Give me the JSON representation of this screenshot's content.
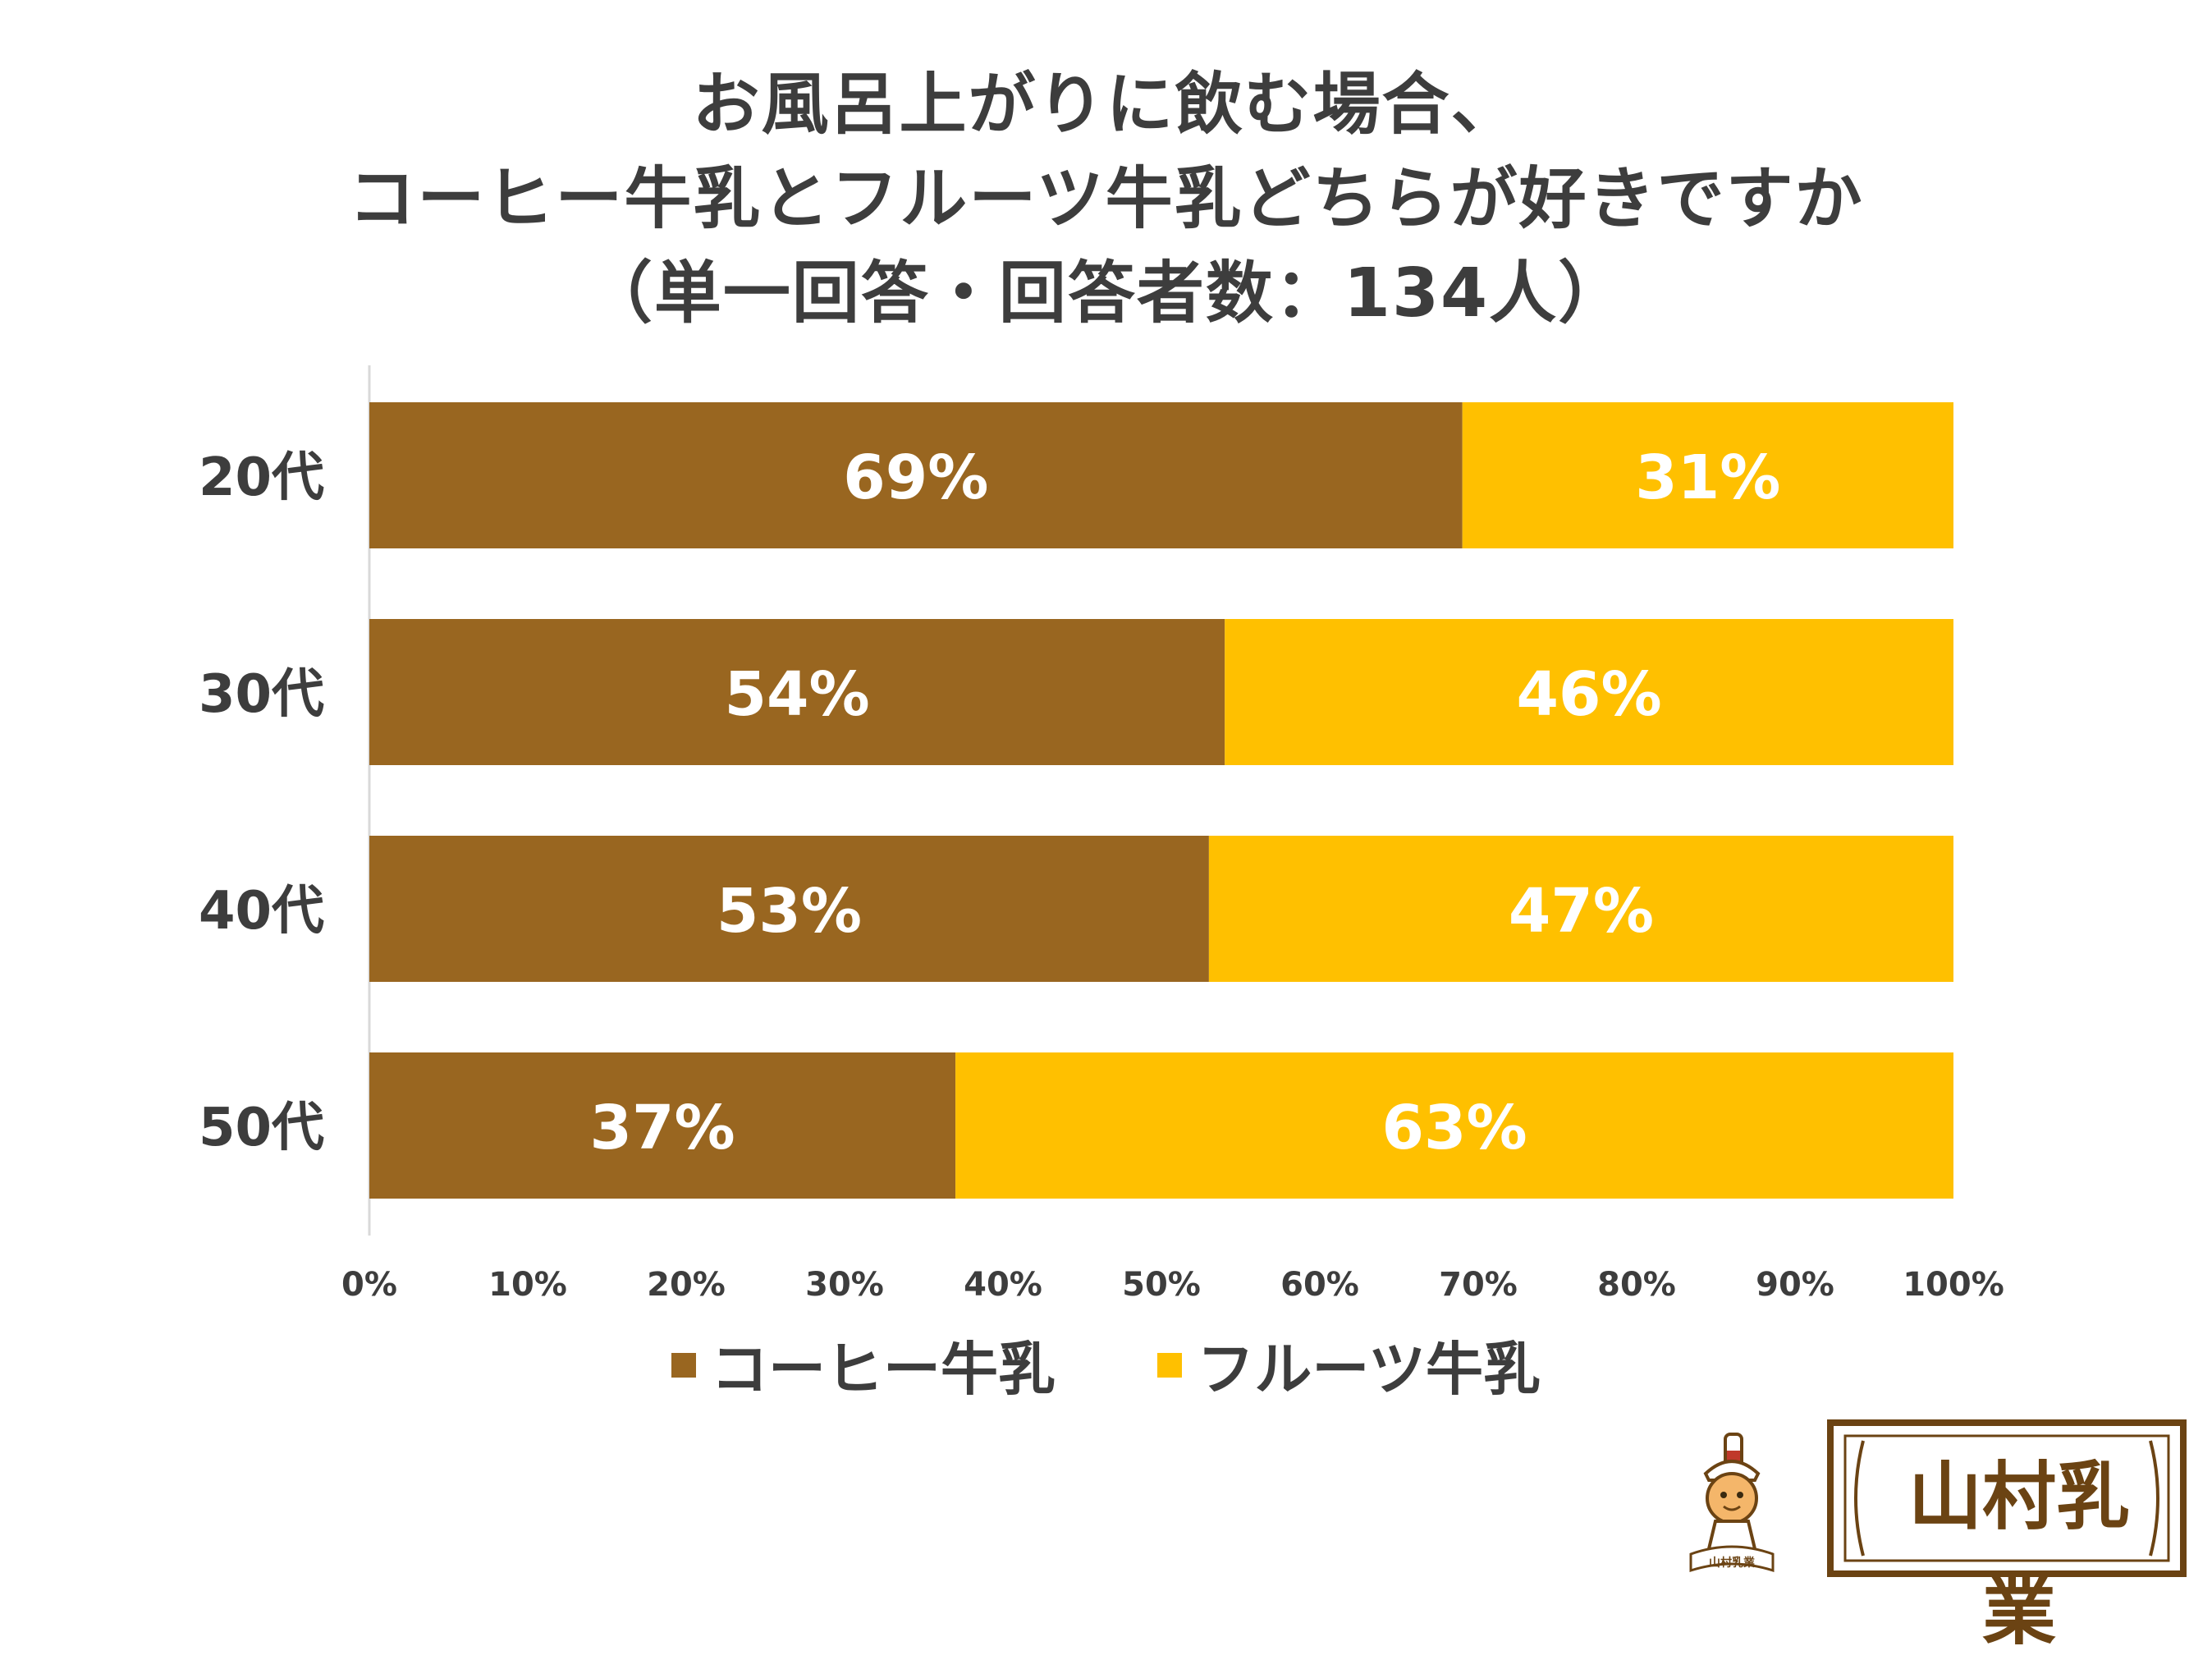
{
  "title_lines": [
    "お風呂上がりに飲む場合、",
    "コーヒー牛乳とフルーツ牛乳どちらが好きですか",
    "（単一回答・回答者数：134人）"
  ],
  "chart_data": {
    "type": "bar",
    "orientation": "horizontal",
    "stacked": true,
    "categories": [
      "20代",
      "30代",
      "40代",
      "50代"
    ],
    "series": [
      {
        "name": "コーヒー牛乳",
        "color": "#996620",
        "values": [
          69,
          54,
          53,
          37
        ],
        "labels": [
          "69%",
          "54%",
          "53%",
          "37%"
        ]
      },
      {
        "name": "フルーツ牛乳",
        "color": "#ffc000",
        "values": [
          31,
          46,
          47,
          63
        ],
        "labels": [
          "31%",
          "46%",
          "47%",
          "63%"
        ]
      }
    ],
    "xlim": [
      0,
      100
    ],
    "xticks": [
      "0%",
      "10%",
      "20%",
      "30%",
      "40%",
      "50%",
      "60%",
      "70%",
      "80%",
      "90%",
      "100%"
    ],
    "grid": false,
    "legend_position": "bottom"
  },
  "logo": {
    "text": "山村乳業",
    "mascot_text": "山村乳業",
    "colors": {
      "frame": "#6b4313",
      "fill": "#ffffff"
    }
  }
}
